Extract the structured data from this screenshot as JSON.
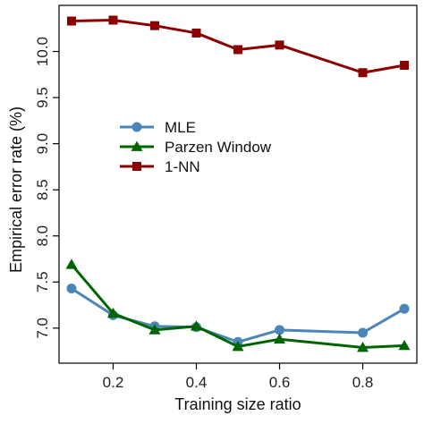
{
  "chart_data": {
    "type": "line",
    "title": "",
    "xlabel": "Training size ratio",
    "ylabel": "Empirical error rate (%)",
    "xlim": [
      0.07,
      0.93
    ],
    "ylim": [
      6.62,
      10.5
    ],
    "x_ticks": [
      0.2,
      0.4,
      0.6,
      0.8
    ],
    "x_tick_labels": [
      "0.2",
      "0.4",
      "0.6",
      "0.8"
    ],
    "y_ticks": [
      7.0,
      7.5,
      8.0,
      8.5,
      9.0,
      9.5,
      10.0
    ],
    "y_tick_labels": [
      "7.0",
      "7.5",
      "8.0",
      "8.5",
      "9.0",
      "9.5",
      "10.0"
    ],
    "grid": false,
    "legend_position": "center-left",
    "x": [
      0.1,
      0.2,
      0.3,
      0.4,
      0.5,
      0.6,
      0.8,
      0.9
    ],
    "series": [
      {
        "name": "MLE",
        "marker": "circle",
        "color": "#4a86b8",
        "values": [
          7.43,
          7.14,
          7.02,
          7.01,
          6.85,
          6.98,
          6.95,
          7.21
        ]
      },
      {
        "name": "Parzen Window",
        "marker": "triangle",
        "color": "#006400",
        "values": [
          7.69,
          7.16,
          6.98,
          7.02,
          6.8,
          6.88,
          6.79,
          6.81
        ]
      },
      {
        "name": "1-NN",
        "marker": "square",
        "color": "#8b0000",
        "values": [
          10.33,
          10.34,
          10.28,
          10.2,
          10.02,
          10.07,
          9.77,
          9.85
        ]
      }
    ]
  }
}
